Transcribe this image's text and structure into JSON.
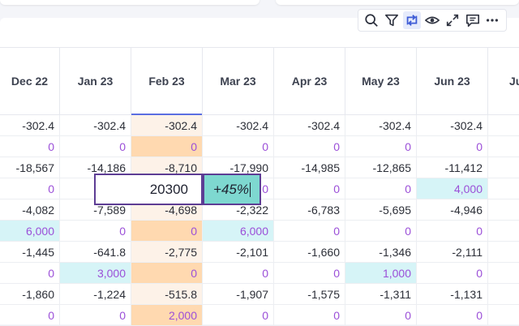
{
  "toolbar": {
    "icons": [
      "search-icon",
      "filter-icon",
      "swap-icon",
      "eye-icon",
      "expand-icon",
      "comment-icon",
      "more-icon"
    ]
  },
  "columns": [
    "Dec 22",
    "Jan 23",
    "Feb 23",
    "Mar 23",
    "Apr 23",
    "May 23",
    "Jun 23",
    "Ju"
  ],
  "rows": [
    [
      "-302.4",
      "-302.4",
      "-302.4",
      "-302.4",
      "-302.4",
      "-302.4",
      "-302.4"
    ],
    [
      "0",
      "0",
      "0",
      "0",
      "0",
      "0",
      "0"
    ],
    [
      "-18,567",
      "-14,186",
      "-8,710",
      "-17,990",
      "-14,985",
      "-12,865",
      "-11,412"
    ],
    [
      "0",
      "",
      "",
      "0",
      "0",
      "0",
      "4,000"
    ],
    [
      "-4,082",
      "-7,589",
      "-4,698",
      "-2,322",
      "-6,783",
      "-5,695",
      "-4,946"
    ],
    [
      "6,000",
      "0",
      "0",
      "6,000",
      "0",
      "0",
      "0"
    ],
    [
      "-1,445",
      "-641.8",
      "-2,775",
      "-2,101",
      "-1,660",
      "-1,346",
      "-2,111"
    ],
    [
      "0",
      "3,000",
      "0",
      "0",
      "0",
      "1,000",
      "0"
    ],
    [
      "-1,860",
      "-1,224",
      "-515.8",
      "-1,907",
      "-1,575",
      "-1,311",
      "-1,131"
    ],
    [
      "0",
      "0",
      "2,000",
      "0",
      "0",
      "0",
      "0"
    ]
  ],
  "editor": {
    "value": "20300",
    "percent": "+45%"
  },
  "colors": {
    "accent": "#5b6ee1",
    "purple_text": "#9b4fd8",
    "orange_cell": "#ffd9b0",
    "light_cell": "#fdf2e8",
    "cyan_cell": "#d6f4f7",
    "editor_border": "#5d3d94",
    "percent_bg": "#7ed8d0"
  }
}
